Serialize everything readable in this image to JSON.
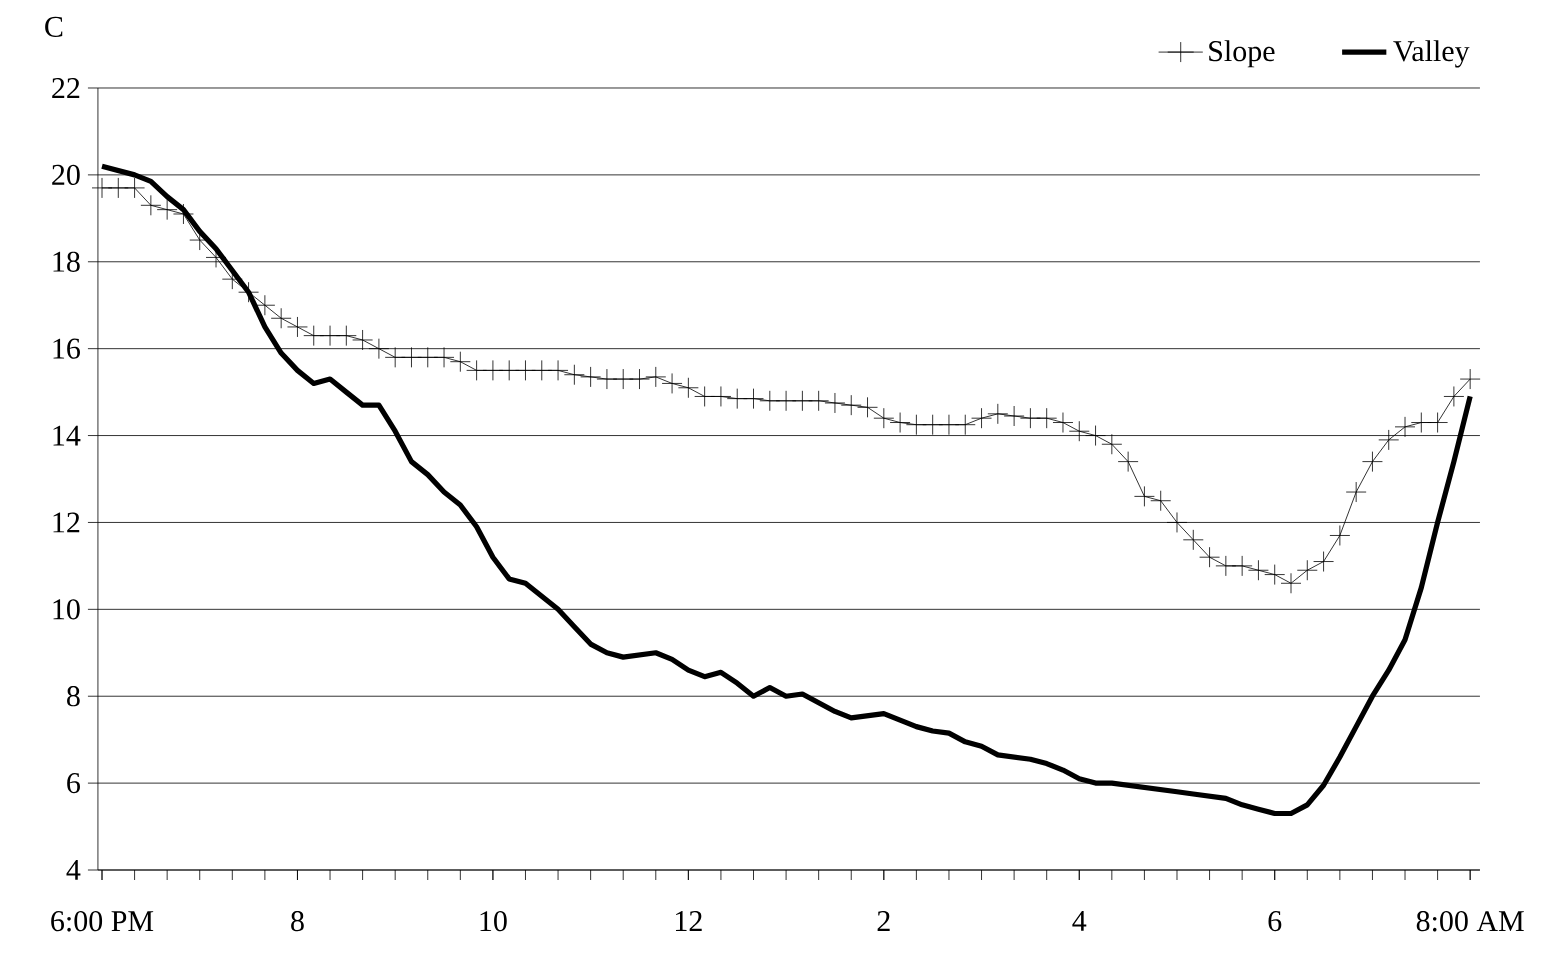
{
  "chart_data": {
    "type": "line",
    "ylabel": "C",
    "categories": [
      "6:00 PM",
      null,
      null,
      null,
      null,
      null,
      null,
      null,
      null,
      null,
      null,
      null,
      "8",
      null,
      null,
      null,
      null,
      null,
      null,
      null,
      null,
      null,
      null,
      null,
      "10",
      null,
      null,
      null,
      null,
      null,
      null,
      null,
      null,
      null,
      null,
      null,
      "12",
      null,
      null,
      null,
      null,
      null,
      null,
      null,
      null,
      null,
      null,
      null,
      "2",
      null,
      null,
      null,
      null,
      null,
      null,
      null,
      null,
      null,
      null,
      null,
      "4",
      null,
      null,
      null,
      null,
      null,
      null,
      null,
      null,
      null,
      null,
      null,
      "6",
      null,
      null,
      null,
      null,
      null,
      null,
      null,
      null,
      null,
      null,
      null,
      "8:00 AM"
    ],
    "ylim": [
      4,
      22
    ],
    "yticks": [
      4,
      6,
      8,
      10,
      12,
      14,
      16,
      18,
      20,
      22
    ],
    "grid": "y",
    "legend": "top right",
    "series": [
      {
        "name": "Slope",
        "color": "#000000",
        "marker": "cross",
        "values": [
          19.7,
          19.7,
          19.7,
          19.3,
          19.2,
          19.1,
          18.5,
          18.1,
          17.6,
          17.3,
          17.0,
          16.7,
          16.5,
          16.3,
          16.3,
          16.3,
          16.2,
          16.0,
          15.8,
          15.8,
          15.8,
          15.8,
          15.7,
          15.5,
          15.5,
          15.5,
          15.5,
          15.5,
          15.5,
          15.4,
          15.35,
          15.3,
          15.3,
          15.3,
          15.35,
          15.2,
          15.1,
          14.9,
          14.9,
          14.85,
          14.85,
          14.8,
          14.8,
          14.8,
          14.8,
          14.75,
          14.7,
          14.65,
          14.4,
          14.3,
          14.25,
          14.25,
          14.25,
          14.25,
          14.4,
          14.5,
          14.45,
          14.4,
          14.4,
          14.3,
          14.1,
          14.0,
          13.8,
          13.4,
          12.6,
          12.5,
          12.0,
          11.6,
          11.2,
          11.0,
          11.0,
          10.9,
          10.8,
          10.6,
          10.9,
          11.1,
          11.7,
          12.7,
          13.4,
          13.9,
          14.2,
          14.3,
          14.3,
          14.9,
          15.3
        ]
      },
      {
        "name": "Valley",
        "color": "#000000",
        "marker": "none",
        "values": [
          20.2,
          20.1,
          20.0,
          19.85,
          19.5,
          19.2,
          18.7,
          18.3,
          17.8,
          17.3,
          16.5,
          15.9,
          15.5,
          15.2,
          15.3,
          15.0,
          14.7,
          14.7,
          14.1,
          13.4,
          13.1,
          12.7,
          12.4,
          11.9,
          11.2,
          10.7,
          10.6,
          10.3,
          10.0,
          9.6,
          9.2,
          9.0,
          8.9,
          8.95,
          9.0,
          8.85,
          8.6,
          8.45,
          8.55,
          8.3,
          8.0,
          8.2,
          8.0,
          8.05,
          7.85,
          7.65,
          7.5,
          7.55,
          7.6,
          7.45,
          7.3,
          7.2,
          7.15,
          6.95,
          6.85,
          6.65,
          6.6,
          6.55,
          6.45,
          6.3,
          6.1,
          6.0,
          6.0,
          5.95,
          5.9,
          5.85,
          5.8,
          5.75,
          5.7,
          5.65,
          5.5,
          5.4,
          5.3,
          5.3,
          5.5,
          5.95,
          6.6,
          7.3,
          8.0,
          8.6,
          9.3,
          10.5,
          12.0,
          13.4,
          14.9
        ]
      }
    ]
  }
}
